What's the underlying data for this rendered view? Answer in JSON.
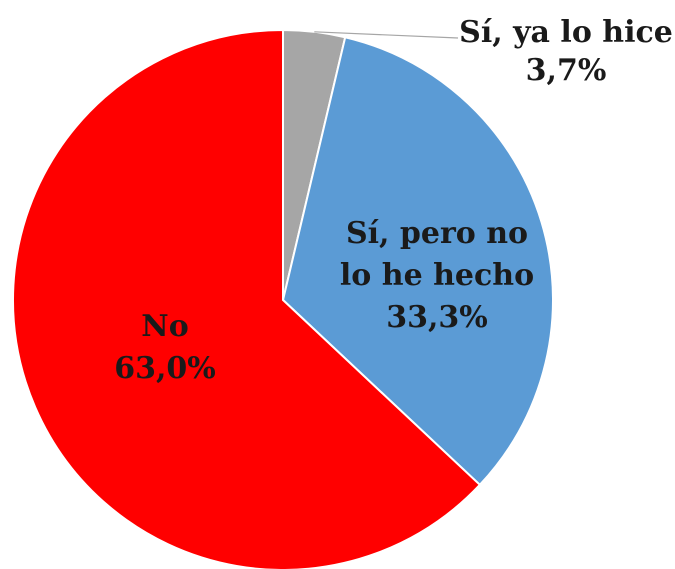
{
  "chart_data": {
    "type": "pie",
    "slices": [
      {
        "label_lines": [
          "Sí, ya lo hice"
        ],
        "value_label": "3,7%",
        "value": 3.7,
        "color": "#a6a6a6"
      },
      {
        "label_lines": [
          "Sí, pero no",
          "lo he hecho"
        ],
        "value_label": "33,3%",
        "value": 33.3,
        "color": "#5b9bd5"
      },
      {
        "label_lines": [
          "No"
        ],
        "value_label": "63,0%",
        "value": 63.0,
        "color": "#ff0000"
      }
    ],
    "start_angle": "12 o'clock",
    "direction": "clockwise",
    "legend": "none"
  }
}
